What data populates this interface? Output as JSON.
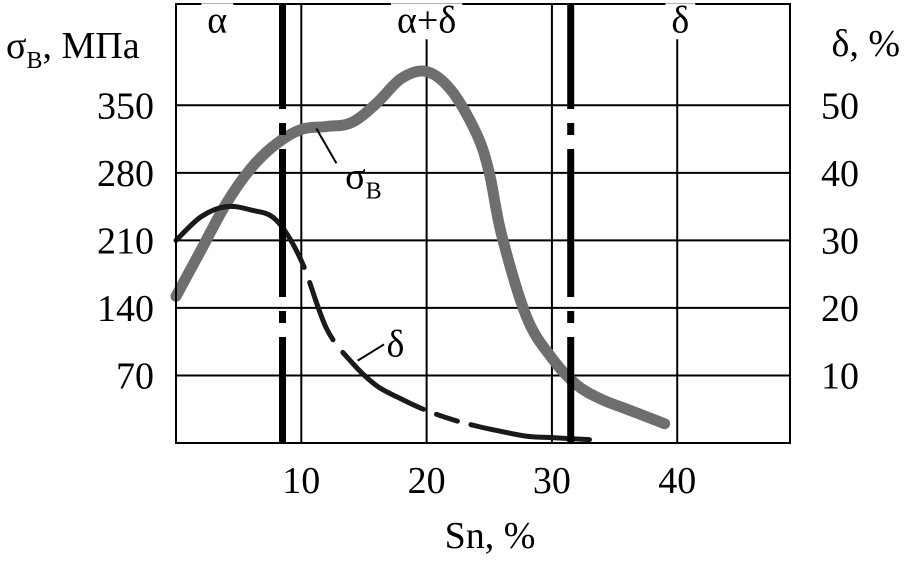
{
  "chart_data": {
    "type": "line",
    "xlabel": "Sn, %",
    "y_left_label": {
      "symbol": "σ",
      "subscript": "В",
      "unit": ", МПа"
    },
    "y_right_label": "δ, %",
    "x_ticks": [
      "10",
      "20",
      "30",
      "40"
    ],
    "y_left_ticks": [
      "70",
      "140",
      "210",
      "280",
      "350"
    ],
    "y_right_ticks": [
      "10",
      "20",
      "30",
      "40",
      "50"
    ],
    "xlim": [
      0,
      49
    ],
    "y_left_lim": [
      0,
      455
    ],
    "y_right_lim": [
      0,
      65
    ],
    "grid": true,
    "regions": [
      {
        "label": "α",
        "x_from": 0,
        "x_to": 8.5
      },
      {
        "label": "α+δ",
        "x_from": 8.5,
        "x_to": 31.5
      },
      {
        "label": "δ",
        "x_from": 31.5,
        "x_to": 49
      }
    ],
    "phase_boundaries": [
      8.5,
      31.5
    ],
    "series": [
      {
        "name": "σ_В",
        "axis": "left",
        "label": {
          "symbol": "σ",
          "subscript": "В"
        },
        "color": "#6e6e6e",
        "x": [
          0,
          2,
          4,
          6,
          8,
          10,
          12,
          14,
          16,
          18,
          20,
          22,
          24,
          25,
          26,
          28,
          30,
          32,
          34,
          36,
          38,
          39
        ],
        "y": [
          152,
          200,
          248,
          285,
          310,
          325,
          328,
          332,
          352,
          378,
          385,
          365,
          320,
          280,
          215,
          130,
          88,
          60,
          45,
          35,
          25,
          20
        ]
      },
      {
        "name": "δ",
        "axis": "right",
        "label": {
          "symbol": "δ"
        },
        "color": "#1a1a1a",
        "x": [
          0,
          2,
          4,
          6,
          8,
          10,
          12,
          14,
          16,
          18,
          20,
          22,
          24,
          26,
          28,
          30,
          32,
          33
        ],
        "y": [
          30,
          33.5,
          35,
          34.5,
          33,
          27,
          17,
          12,
          8.5,
          6.5,
          4.8,
          3.5,
          2.5,
          1.7,
          1.0,
          0.8,
          0.6,
          0.5
        ]
      }
    ]
  },
  "colors": {
    "sigma_series": "#6e6e6e",
    "delta_series": "#1a1a1a",
    "grid": "#000000"
  }
}
